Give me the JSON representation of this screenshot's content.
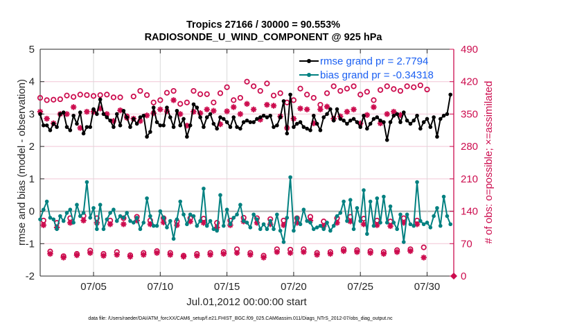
{
  "chart_data": {
    "type": "line",
    "title": "Tropics 27166 / 30000 = 90.553%",
    "subtitle": "RADIOSONDE_U_WIND_COMPONENT @ 925 hPa",
    "xlabel": "Jul.01,2012 00:00:00 start",
    "ylabel": "rmse and bias (model - observation)",
    "ylabel_right": "# of obs: o=possible; ×=assimilated",
    "footnote": "data file: /Users/raeder/DAI/ATM_forcXX/CAM6_setup/f.e21.FHIST_BGC.f09_025.CAM6assim.011/Diags_NTrS_2012-07/obs_diag_output.nc",
    "x_unit": "days since Jul.01,2012 00:00",
    "xlim": [
      0,
      31
    ],
    "ylim": [
      -2,
      5
    ],
    "ylim_right": [
      0,
      490
    ],
    "xticks": [
      {
        "day": 4,
        "label": "07/05"
      },
      {
        "day": 9,
        "label": "07/10"
      },
      {
        "day": 14,
        "label": "07/15"
      },
      {
        "day": 19,
        "label": "07/20"
      },
      {
        "day": 24,
        "label": "07/25"
      },
      {
        "day": 29,
        "label": "07/30"
      }
    ],
    "yticks": [
      "-2",
      "-1",
      "0",
      "1",
      "2",
      "3",
      "4",
      "5"
    ],
    "yticks_right": [
      "0",
      "70",
      "140",
      "210",
      "280",
      "350",
      "420",
      "490"
    ],
    "grid": true,
    "legend_position": "top-right",
    "time_step_days": 0.25,
    "colors": {
      "rmse": "#000000",
      "bias": "#008080",
      "obs": "#cc0c4e",
      "legend_text": "#1a5ff2",
      "zero_line": "#b3b3b3",
      "hgrid": "#f2c6d6",
      "vgrid": "#d9d9d9"
    },
    "series": [
      {
        "name": "rmse",
        "legend": "rmse grand pr = 2.7794",
        "axis": "left",
        "values": [
          3.0,
          2.65,
          2.65,
          2.5,
          2.7,
          2.6,
          3.0,
          3.05,
          2.6,
          2.5,
          2.95,
          2.7,
          3.05,
          2.4,
          2.6,
          2.6,
          3.15,
          3.0,
          3.45,
          3.0,
          2.9,
          2.8,
          2.6,
          3.0,
          2.65,
          3.1,
          2.9,
          2.6,
          2.85,
          2.7,
          2.9,
          2.95,
          2.3,
          2.45,
          3.2,
          2.75,
          2.65,
          2.65,
          3.2,
          2.9,
          2.6,
          3.1,
          2.65,
          2.85,
          2.3,
          2.65,
          3.3,
          3.2,
          2.9,
          2.6,
          2.9,
          3.0,
          2.7,
          2.55,
          2.9,
          2.85,
          2.75,
          2.6,
          2.9,
          2.6,
          2.55,
          2.75,
          2.8,
          2.75,
          2.75,
          2.85,
          2.9,
          2.95,
          2.9,
          2.95,
          2.6,
          2.65,
          2.9,
          3.4,
          2.4,
          3.6,
          2.6,
          2.7,
          2.75,
          2.6,
          2.55,
          2.5,
          2.95,
          2.7,
          2.5,
          2.9,
          3.0,
          3.15,
          2.8,
          3.15,
          2.85,
          2.8,
          2.7,
          2.8,
          2.85,
          2.75,
          2.6,
          2.95,
          2.55,
          2.7,
          2.85,
          2.9,
          2.8,
          2.75,
          2.2,
          2.75,
          2.95,
          3.0,
          2.75,
          3.05,
          2.8,
          2.7,
          2.8,
          2.95,
          2.55,
          2.75,
          2.85,
          2.6,
          2.9,
          2.3,
          2.85,
          2.95,
          3.0,
          3.6
        ]
      },
      {
        "name": "bias",
        "legend": "bias grand pr = -0.34318",
        "axis": "left",
        "values": [
          -0.25,
          0.05,
          0.3,
          -0.2,
          -0.25,
          -0.55,
          -0.15,
          -0.3,
          -0.05,
          0.05,
          -0.35,
          0.2,
          -0.15,
          -0.05,
          0.9,
          -0.2,
          0.1,
          -0.55,
          0.2,
          -0.55,
          -0.25,
          -0.05,
          0.05,
          -0.3,
          -0.15,
          -0.2,
          -0.05,
          -0.3,
          -0.35,
          -0.2,
          -0.55,
          -0.35,
          0.4,
          -0.15,
          -0.45,
          -0.45,
          0.0,
          -0.2,
          -0.5,
          -0.3,
          -0.85,
          -0.25,
          0.3,
          -0.1,
          -0.4,
          -0.1,
          -0.15,
          -0.45,
          -0.3,
          0.7,
          -0.45,
          -0.3,
          -0.55,
          -0.6,
          0.5,
          -0.45,
          0.05,
          -0.4,
          -0.2,
          -0.1,
          0.2,
          -0.3,
          -0.35,
          -0.5,
          -0.1,
          -0.25,
          -0.55,
          -0.4,
          -0.55,
          -0.3,
          -0.55,
          -0.1,
          -0.6,
          -0.95,
          -0.2,
          1.05,
          -0.6,
          -0.2,
          -0.4,
          0.05,
          -0.3,
          -0.35,
          -0.55,
          -0.5,
          -0.45,
          -0.55,
          -0.35,
          -0.6,
          -0.45,
          -0.15,
          -0.05,
          0.3,
          -0.3,
          0.35,
          -0.55,
          0.1,
          -0.3,
          0.65,
          -0.7,
          0.3,
          -0.45,
          0.4,
          -0.35,
          0.45,
          -0.35,
          0.15,
          -0.35,
          -0.55,
          -0.1,
          -0.95,
          -0.1,
          -0.4,
          -0.45,
          0.9,
          -0.3,
          -0.4,
          -0.35,
          -0.5,
          -0.15,
          0.1,
          -0.45,
          0.45,
          -0.15,
          -0.4
        ]
      },
      {
        "name": "obs_possible",
        "axis": "right",
        "marker": "o",
        "values": [
          385,
          null,
          380,
          null,
          381,
          null,
          382,
          null,
          390,
          null,
          387,
          null,
          392,
          null,
          391,
          null,
          389,
          null,
          391,
          null,
          392,
          null,
          386,
          null,
          386,
          null,
          345,
          null,
          388,
          null,
          400,
          null,
          391,
          null,
          375,
          null,
          380,
          null,
          396,
          null,
          400,
          null,
          372,
          null,
          375,
          null,
          400,
          null,
          393,
          null,
          393,
          null,
          375,
          null,
          395,
          null,
          408,
          null,
          380,
          null,
          385,
          null,
          420,
          null,
          410,
          null,
          400,
          null,
          416,
          null,
          390,
          null,
          395,
          null,
          375,
          null,
          380,
          null,
          405,
          null,
          392,
          null,
          385,
          null,
          370,
          null,
          395,
          null,
          410,
          null,
          400,
          null,
          405,
          null,
          410,
          null,
          392,
          null,
          398,
          null,
          380,
          null,
          402,
          null,
          410,
          null,
          404,
          null,
          400,
          null,
          410,
          null,
          408,
          null,
          412,
          null,
          403
        ]
      },
      {
        "name": "obs_assimilated",
        "axis": "right",
        "marker": "*",
        "values": [
          355,
          null,
          340,
          null,
          330,
          null,
          350,
          null,
          350,
          null,
          365,
          null,
          320,
          null,
          355,
          null,
          355,
          null,
          362,
          null,
          350,
          null,
          335,
          null,
          358,
          null,
          342,
          null,
          340,
          null,
          335,
          null,
          347,
          null,
          352,
          null,
          360,
          null,
          356,
          null,
          380,
          null,
          350,
          null,
          325,
          null,
          355,
          null,
          352,
          null,
          360,
          null,
          357,
          null,
          328,
          null,
          356,
          null,
          365,
          null,
          350,
          null,
          372,
          null,
          360,
          null,
          338,
          null,
          370,
          null,
          368,
          null,
          345,
          null,
          320,
          null,
          340,
          null,
          362,
          null,
          360,
          null,
          330,
          null,
          360,
          null,
          366,
          null,
          340,
          null,
          345,
          null,
          355,
          null,
          360,
          null,
          330,
          null,
          348,
          null,
          365,
          null,
          330,
          null,
          350,
          null,
          355,
          null,
          348
        ]
      },
      {
        "name": "obs_possible_offhours",
        "axis": "right",
        "marker": "o",
        "values": [
          null,
          120,
          null,
          53,
          null,
          115,
          null,
          43,
          null,
          125,
          null,
          48,
          null,
          130,
          null,
          55,
          null,
          125,
          null,
          48,
          null,
          120,
          null,
          52,
          null,
          125,
          null,
          45,
          null,
          128,
          null,
          50,
          null,
          120,
          null,
          54,
          null,
          125,
          null,
          50,
          null,
          118,
          null,
          44,
          null,
          125,
          null,
          48,
          null,
          124,
          null,
          50,
          null,
          115,
          null,
          52,
          null,
          120,
          null,
          58,
          null,
          126,
          null,
          50,
          null,
          125,
          null,
          44,
          null,
          123,
          null,
          58,
          null,
          120,
          null,
          57,
          null,
          125,
          null,
          58,
          null,
          128,
          null,
          50,
          null,
          118,
          null,
          52,
          null,
          125,
          null,
          58,
          null,
          128,
          null,
          56,
          null,
          124,
          null,
          54,
          null,
          120,
          null,
          52,
          null,
          118,
          null,
          56,
          null,
          125,
          null,
          58,
          null,
          120,
          null,
          62
        ]
      },
      {
        "name": "obs_assimilated_offhours",
        "axis": "right",
        "marker": "*",
        "values": [
          null,
          110,
          null,
          48,
          null,
          105,
          null,
          40,
          null,
          115,
          null,
          45,
          null,
          120,
          null,
          50,
          null,
          115,
          null,
          44,
          null,
          112,
          null,
          46,
          null,
          112,
          null,
          42,
          null,
          120,
          null,
          46,
          null,
          112,
          null,
          50,
          null,
          116,
          null,
          46,
          null,
          110,
          null,
          42,
          null,
          118,
          null,
          44,
          null,
          115,
          null,
          46,
          null,
          105,
          null,
          48,
          null,
          110,
          null,
          50,
          null,
          118,
          null,
          46,
          null,
          115,
          null,
          40,
          null,
          112,
          null,
          52,
          null,
          110,
          null,
          50,
          null,
          115,
          null,
          52,
          null,
          120,
          null,
          46,
          null,
          108,
          null,
          48,
          null,
          115,
          null,
          54,
          null,
          118,
          null,
          52,
          null,
          112,
          null,
          50,
          null,
          110,
          null,
          48,
          null,
          108,
          null,
          52,
          null,
          115,
          null,
          54,
          null,
          112,
          null,
          40
        ]
      }
    ]
  }
}
